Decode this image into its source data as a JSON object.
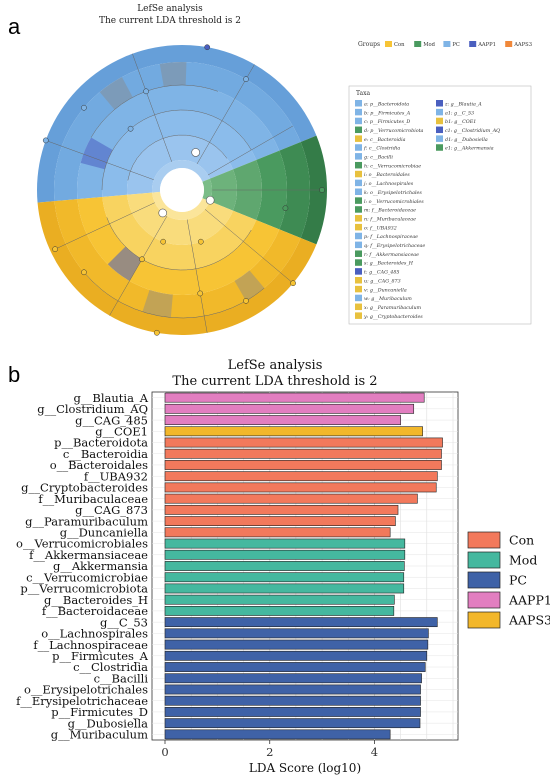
{
  "panel_a": {
    "letter": "a",
    "title": "LefSe analysis",
    "subtitle": "The current LDA threshold is 2",
    "groups_label": "Groups",
    "groups": [
      {
        "name": "Con",
        "color": "#f7c435"
      },
      {
        "name": "Mod",
        "color": "#4a9a5f"
      },
      {
        "name": "PC",
        "color": "#7fb4e6"
      },
      {
        "name": "AAPP1",
        "color": "#4a5fbf"
      },
      {
        "name": "AAPS3",
        "color": "#f0883a"
      }
    ],
    "taxa_label": "Taxa",
    "taxa": [
      {
        "label": "a: p__Bacteroidota",
        "color": "#7fb4e6"
      },
      {
        "label": "b: p__Firmicutes_A",
        "color": "#7fb4e6"
      },
      {
        "label": "c: p__Firmicutes_D",
        "color": "#7fb4e6"
      },
      {
        "label": "d: p__Verrucomicrobiota",
        "color": "#4a9a5f"
      },
      {
        "label": "e: c__Bacteroidia",
        "color": "#e8c13e"
      },
      {
        "label": "f: c__Clostridia",
        "color": "#7fb4e6"
      },
      {
        "label": "g: c__Bacilli",
        "color": "#7fb4e6"
      },
      {
        "label": "h: c__Verrucomicrobiae",
        "color": "#4a9a5f"
      },
      {
        "label": "i: o__Bacteroidales",
        "color": "#e8c13e"
      },
      {
        "label": "j: o__Lachnospirales",
        "color": "#7fb4e6"
      },
      {
        "label": "k: o__Erysipelotrichales",
        "color": "#7fb4e6"
      },
      {
        "label": "l: o__Verrucomicrobiales",
        "color": "#4a9a5f"
      },
      {
        "label": "m: f__Bacteroidaceae",
        "color": "#4a9a5f"
      },
      {
        "label": "n: f__Muribaculaceae",
        "color": "#e8c13e"
      },
      {
        "label": "o: f__UBA932",
        "color": "#e8c13e"
      },
      {
        "label": "p: f__Lachnospiraceae",
        "color": "#7fb4e6"
      },
      {
        "label": "q: f__Erysipelotrichaceae",
        "color": "#7fb4e6"
      },
      {
        "label": "r: f__Akkermansiaceae",
        "color": "#4a9a5f"
      },
      {
        "label": "s: g__Bacteroides_H",
        "color": "#4a9a5f"
      },
      {
        "label": "t: g__CAG_485",
        "color": "#4a5fbf"
      },
      {
        "label": "u: g__CAG_873",
        "color": "#e8c13e"
      },
      {
        "label": "v: g__Duncaniella",
        "color": "#e8c13e"
      },
      {
        "label": "w: g__Muribaculum",
        "color": "#7fb4e6"
      },
      {
        "label": "x: g__Paramuribaculum",
        "color": "#e8c13e"
      },
      {
        "label": "y: g__Cryptobacteroides",
        "color": "#e8c13e"
      },
      {
        "label": "z: g__Blautia_A",
        "color": "#4a5fbf"
      },
      {
        "label": "a1: g__C_53",
        "color": "#7fb4e6"
      },
      {
        "label": "b1: g__COE1",
        "color": "#e8c13e"
      },
      {
        "label": "c1: g__Clostridium_AQ",
        "color": "#4a5fbf"
      },
      {
        "label": "d1: g__Dubosiella",
        "color": "#7fb4e6"
      },
      {
        "label": "e1: g__Akkermansia",
        "color": "#4a9a5f"
      }
    ],
    "sectors": [
      {
        "group": "PC",
        "start": -95,
        "end": 68,
        "color": "#7fb4e6"
      },
      {
        "group": "Mod",
        "start": 68,
        "end": 112,
        "color": "#4a9a5f"
      },
      {
        "group": "Con",
        "start": 112,
        "end": 265,
        "color": "#f7c435"
      }
    ]
  },
  "chart_data": {
    "type": "bar",
    "orientation": "horizontal",
    "title": "LefSe analysis",
    "subtitle": "The current LDA threshold is 2",
    "xlabel": "LDA Score (log10)",
    "ylabel": "",
    "xlim": [
      0,
      5.5
    ],
    "xticks": [
      0,
      2,
      4
    ],
    "grid": true,
    "legend_position": "right",
    "legend": [
      {
        "name": "Con",
        "color": "#f2795c"
      },
      {
        "name": "Mod",
        "color": "#45b89f"
      },
      {
        "name": "PC",
        "color": "#3f62a7"
      },
      {
        "name": "AAPP1",
        "color": "#e27ec0"
      },
      {
        "name": "AAPS3",
        "color": "#f2b72b"
      }
    ],
    "bars": [
      {
        "label": "g__Blautia_A",
        "value": 4.95,
        "group": "AAPP1"
      },
      {
        "label": "g__Clostridium_AQ",
        "value": 4.75,
        "group": "AAPP1"
      },
      {
        "label": "g__CAG_485",
        "value": 4.5,
        "group": "AAPP1"
      },
      {
        "label": "g__COE1",
        "value": 4.92,
        "group": "AAPS3"
      },
      {
        "label": "p__Bacteroidota",
        "value": 5.3,
        "group": "Con"
      },
      {
        "label": "c__Bacteroidia",
        "value": 5.28,
        "group": "Con"
      },
      {
        "label": "o__Bacteroidales",
        "value": 5.28,
        "group": "Con"
      },
      {
        "label": "f__UBA932",
        "value": 5.2,
        "group": "Con"
      },
      {
        "label": "g__Cryptobacteroides",
        "value": 5.18,
        "group": "Con"
      },
      {
        "label": "f__Muribaculaceae",
        "value": 4.82,
        "group": "Con"
      },
      {
        "label": "g__CAG_873",
        "value": 4.45,
        "group": "Con"
      },
      {
        "label": "g__Paramuribaculum",
        "value": 4.4,
        "group": "Con"
      },
      {
        "label": "g__Duncaniella",
        "value": 4.3,
        "group": "Con"
      },
      {
        "label": "o__Verrucomicrobiales",
        "value": 4.58,
        "group": "Mod"
      },
      {
        "label": "f__Akkermansiaceae",
        "value": 4.58,
        "group": "Mod"
      },
      {
        "label": "g__Akkermansia",
        "value": 4.57,
        "group": "Mod"
      },
      {
        "label": "c__Verrucomicrobiae",
        "value": 4.56,
        "group": "Mod"
      },
      {
        "label": "p__Verrucomicrobiota",
        "value": 4.56,
        "group": "Mod"
      },
      {
        "label": "g__Bacteroides_H",
        "value": 4.38,
        "group": "Mod"
      },
      {
        "label": "f__Bacteroidaceae",
        "value": 4.37,
        "group": "Mod"
      },
      {
        "label": "g__C_53",
        "value": 5.2,
        "group": "PC"
      },
      {
        "label": "o__Lachnospirales",
        "value": 5.03,
        "group": "PC"
      },
      {
        "label": "f__Lachnospiraceae",
        "value": 5.02,
        "group": "PC"
      },
      {
        "label": "p__Firmicutes_A",
        "value": 5.0,
        "group": "PC"
      },
      {
        "label": "c__Clostridia",
        "value": 4.97,
        "group": "PC"
      },
      {
        "label": "c__Bacilli",
        "value": 4.9,
        "group": "PC"
      },
      {
        "label": "o__Erysipelotrichales",
        "value": 4.88,
        "group": "PC"
      },
      {
        "label": "f__Erysipelotrichaceae",
        "value": 4.88,
        "group": "PC"
      },
      {
        "label": "p__Firmicutes_D",
        "value": 4.88,
        "group": "PC"
      },
      {
        "label": "g__Dubosiella",
        "value": 4.87,
        "group": "PC"
      },
      {
        "label": "g__Muribaculum",
        "value": 4.3,
        "group": "PC"
      }
    ]
  }
}
